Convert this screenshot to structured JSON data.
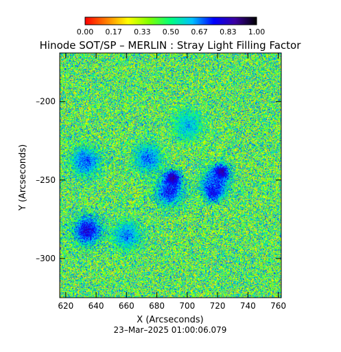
{
  "chart_data": {
    "type": "heatmap",
    "title": "Hinode SOT/SP – MERLIN : Stray Light Filling Factor",
    "xlabel": "X (Arcseconds)",
    "ylabel": "Y (Arcseconds)",
    "timestamp": "23–Mar–2025 01:00:06.079",
    "xlim": [
      616,
      762
    ],
    "ylim": [
      -325,
      -169
    ],
    "x_ticks": [
      620,
      640,
      660,
      680,
      700,
      720,
      740,
      760
    ],
    "y_ticks": [
      -200,
      -250,
      -300
    ],
    "colorbar": {
      "range": [
        0,
        1
      ],
      "tick_labels": [
        "0.00",
        "0.17",
        "0.33",
        "0.50",
        "0.67",
        "0.83",
        "1.00"
      ],
      "colormap": [
        "#ff0000",
        "#ff7f00",
        "#ffff00",
        "#7fff00",
        "#00ff7f",
        "#00c0ff",
        "#0000ff",
        "#3c00a0",
        "#000000"
      ]
    },
    "background_level": 0.45,
    "features": [
      {
        "kind": "pore",
        "x": 690,
        "y": -249,
        "value": 0.95
      },
      {
        "kind": "pore",
        "x": 722,
        "y": -245,
        "value": 0.95
      },
      {
        "kind": "pore",
        "x": 717,
        "y": -257,
        "value": 0.9
      },
      {
        "kind": "plage",
        "x": 688,
        "y": -257,
        "value": 0.75
      },
      {
        "kind": "plage",
        "x": 718,
        "y": -252,
        "value": 0.72
      },
      {
        "kind": "plage",
        "x": 634,
        "y": -282,
        "value": 0.8
      },
      {
        "kind": "plage",
        "x": 633,
        "y": -238,
        "value": 0.7
      },
      {
        "kind": "plage",
        "x": 674,
        "y": -236,
        "value": 0.68
      },
      {
        "kind": "plage",
        "x": 660,
        "y": -285,
        "value": 0.66
      },
      {
        "kind": "plage",
        "x": 700,
        "y": -215,
        "value": 0.62
      }
    ]
  }
}
